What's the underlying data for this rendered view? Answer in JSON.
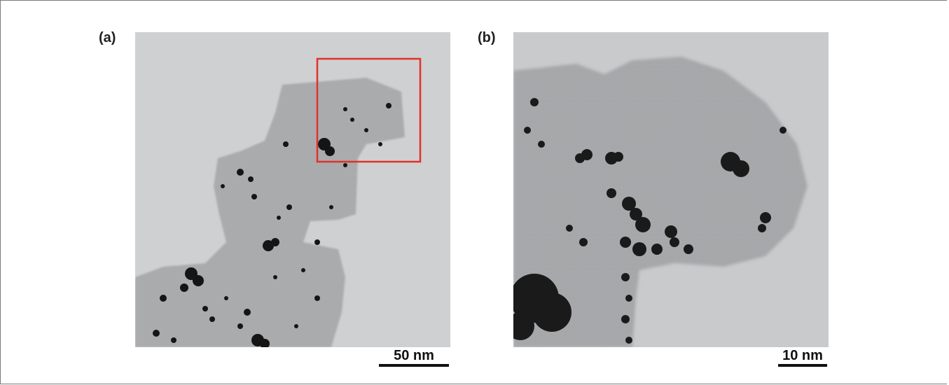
{
  "panels": [
    {
      "label": "(a)",
      "scale_label": "50 nm",
      "has_zoom_box": true,
      "zoom_box_color": "#e0322b"
    },
    {
      "label": "(b)",
      "scale_label": "10 nm"
    }
  ],
  "colors": {
    "background": "#cfd0d1",
    "support": "#a9abad",
    "particle": "#151515"
  }
}
